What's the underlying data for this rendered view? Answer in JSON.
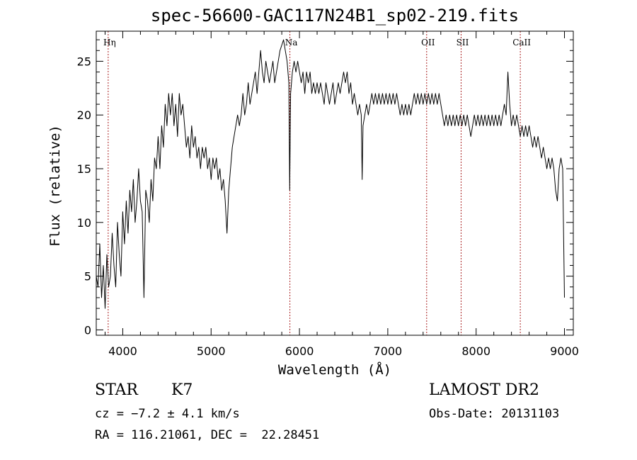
{
  "chart_data": {
    "type": "line",
    "title": "spec-56600-GAC117N24B1_sp02-219.fits",
    "xlabel": "Wavelength (Å)",
    "ylabel": "Flux (relative)",
    "xlim": [
      3700,
      9100
    ],
    "ylim": [
      -0.5,
      27.8
    ],
    "x_ticks": [
      4000,
      5000,
      6000,
      7000,
      8000,
      9000
    ],
    "x_tick_labels": [
      "4000",
      "5000",
      "6000",
      "7000",
      "8000",
      "9000"
    ],
    "y_ticks": [
      0,
      5,
      10,
      15,
      20,
      25
    ],
    "y_tick_labels": [
      "0",
      "5",
      "10",
      "15",
      "20",
      "25"
    ],
    "grid": false,
    "line_color": "#000000",
    "marker_color": "#aa2222",
    "line_markers": [
      {
        "label": "Hη",
        "wavelength": 3835
      },
      {
        "label": "Na",
        "wavelength": 5892
      },
      {
        "label": "OII",
        "wavelength": 7440
      },
      {
        "label": "SII",
        "wavelength": 7830
      },
      {
        "label": "CaII",
        "wavelength": 8500
      }
    ],
    "series": [
      {
        "values": [
          [
            3700,
            5
          ],
          [
            3720,
            4
          ],
          [
            3740,
            8
          ],
          [
            3760,
            3
          ],
          [
            3780,
            6
          ],
          [
            3800,
            2
          ],
          [
            3820,
            7
          ],
          [
            3840,
            4
          ],
          [
            3860,
            5
          ],
          [
            3880,
            9
          ],
          [
            3900,
            6
          ],
          [
            3920,
            4
          ],
          [
            3940,
            10
          ],
          [
            3960,
            7
          ],
          [
            3980,
            5
          ],
          [
            4000,
            11
          ],
          [
            4020,
            8
          ],
          [
            4040,
            12
          ],
          [
            4060,
            9
          ],
          [
            4080,
            13
          ],
          [
            4100,
            11
          ],
          [
            4120,
            14
          ],
          [
            4140,
            10
          ],
          [
            4160,
            12
          ],
          [
            4180,
            15
          ],
          [
            4200,
            12
          ],
          [
            4220,
            11
          ],
          [
            4240,
            3
          ],
          [
            4260,
            13
          ],
          [
            4280,
            12
          ],
          [
            4300,
            10
          ],
          [
            4320,
            14
          ],
          [
            4340,
            12
          ],
          [
            4360,
            16
          ],
          [
            4380,
            15
          ],
          [
            4400,
            18
          ],
          [
            4420,
            15
          ],
          [
            4440,
            19
          ],
          [
            4460,
            17
          ],
          [
            4480,
            21
          ],
          [
            4500,
            19
          ],
          [
            4520,
            22
          ],
          [
            4540,
            20
          ],
          [
            4560,
            22
          ],
          [
            4580,
            19
          ],
          [
            4600,
            21
          ],
          [
            4620,
            18
          ],
          [
            4640,
            22
          ],
          [
            4660,
            20
          ],
          [
            4680,
            21
          ],
          [
            4700,
            19
          ],
          [
            4720,
            17
          ],
          [
            4740,
            18
          ],
          [
            4760,
            16
          ],
          [
            4780,
            19
          ],
          [
            4800,
            17
          ],
          [
            4820,
            18
          ],
          [
            4840,
            16
          ],
          [
            4860,
            17
          ],
          [
            4880,
            15
          ],
          [
            4900,
            17
          ],
          [
            4920,
            16
          ],
          [
            4940,
            17
          ],
          [
            4960,
            15
          ],
          [
            4980,
            16
          ],
          [
            5000,
            14
          ],
          [
            5020,
            16
          ],
          [
            5040,
            15
          ],
          [
            5060,
            16
          ],
          [
            5080,
            14
          ],
          [
            5100,
            15
          ],
          [
            5120,
            13
          ],
          [
            5140,
            14
          ],
          [
            5160,
            12
          ],
          [
            5180,
            9
          ],
          [
            5200,
            13
          ],
          [
            5220,
            15
          ],
          [
            5240,
            17
          ],
          [
            5260,
            18
          ],
          [
            5280,
            19
          ],
          [
            5300,
            20
          ],
          [
            5320,
            19
          ],
          [
            5340,
            20
          ],
          [
            5360,
            22
          ],
          [
            5380,
            20
          ],
          [
            5400,
            21
          ],
          [
            5420,
            23
          ],
          [
            5440,
            21
          ],
          [
            5460,
            22
          ],
          [
            5480,
            23
          ],
          [
            5500,
            24
          ],
          [
            5520,
            22
          ],
          [
            5540,
            24
          ],
          [
            5560,
            26
          ],
          [
            5580,
            24
          ],
          [
            5600,
            23
          ],
          [
            5620,
            25
          ],
          [
            5640,
            24
          ],
          [
            5660,
            23
          ],
          [
            5680,
            24
          ],
          [
            5700,
            25
          ],
          [
            5720,
            23
          ],
          [
            5740,
            24
          ],
          [
            5760,
            25
          ],
          [
            5780,
            26
          ],
          [
            5800,
            26.5
          ],
          [
            5820,
            27
          ],
          [
            5840,
            26
          ],
          [
            5860,
            25
          ],
          [
            5880,
            23
          ],
          [
            5890,
            13
          ],
          [
            5900,
            22
          ],
          [
            5920,
            24
          ],
          [
            5940,
            25
          ],
          [
            5960,
            24
          ],
          [
            5980,
            25
          ],
          [
            6000,
            24
          ],
          [
            6020,
            23
          ],
          [
            6040,
            24
          ],
          [
            6060,
            22
          ],
          [
            6080,
            24
          ],
          [
            6100,
            23
          ],
          [
            6120,
            24
          ],
          [
            6140,
            22
          ],
          [
            6160,
            23
          ],
          [
            6180,
            22
          ],
          [
            6200,
            23
          ],
          [
            6220,
            22
          ],
          [
            6240,
            23
          ],
          [
            6260,
            22
          ],
          [
            6280,
            21
          ],
          [
            6300,
            23
          ],
          [
            6320,
            22
          ],
          [
            6340,
            21
          ],
          [
            6360,
            22
          ],
          [
            6380,
            23
          ],
          [
            6400,
            21
          ],
          [
            6420,
            22
          ],
          [
            6440,
            23
          ],
          [
            6460,
            22
          ],
          [
            6480,
            23
          ],
          [
            6500,
            24
          ],
          [
            6520,
            23
          ],
          [
            6540,
            24
          ],
          [
            6560,
            22
          ],
          [
            6580,
            23
          ],
          [
            6600,
            21
          ],
          [
            6620,
            22
          ],
          [
            6640,
            21
          ],
          [
            6660,
            20
          ],
          [
            6680,
            21
          ],
          [
            6700,
            20
          ],
          [
            6710,
            14
          ],
          [
            6720,
            19
          ],
          [
            6740,
            20
          ],
          [
            6760,
            21
          ],
          [
            6780,
            20
          ],
          [
            6800,
            21
          ],
          [
            6820,
            22
          ],
          [
            6840,
            21
          ],
          [
            6860,
            22
          ],
          [
            6880,
            21
          ],
          [
            6900,
            22
          ],
          [
            6920,
            21
          ],
          [
            6940,
            22
          ],
          [
            6960,
            21
          ],
          [
            6980,
            22
          ],
          [
            7000,
            21
          ],
          [
            7020,
            22
          ],
          [
            7040,
            21
          ],
          [
            7060,
            22
          ],
          [
            7080,
            21
          ],
          [
            7100,
            22
          ],
          [
            7120,
            21
          ],
          [
            7140,
            20
          ],
          [
            7160,
            21
          ],
          [
            7180,
            20
          ],
          [
            7200,
            21
          ],
          [
            7220,
            20
          ],
          [
            7240,
            21
          ],
          [
            7260,
            20
          ],
          [
            7280,
            21
          ],
          [
            7300,
            22
          ],
          [
            7320,
            21
          ],
          [
            7340,
            22
          ],
          [
            7360,
            21
          ],
          [
            7380,
            22
          ],
          [
            7400,
            21
          ],
          [
            7420,
            22
          ],
          [
            7440,
            21
          ],
          [
            7460,
            22
          ],
          [
            7480,
            21
          ],
          [
            7500,
            22
          ],
          [
            7520,
            21
          ],
          [
            7540,
            22
          ],
          [
            7560,
            21
          ],
          [
            7580,
            22
          ],
          [
            7600,
            21
          ],
          [
            7620,
            20
          ],
          [
            7640,
            19
          ],
          [
            7660,
            20
          ],
          [
            7680,
            19
          ],
          [
            7700,
            20
          ],
          [
            7720,
            19
          ],
          [
            7740,
            20
          ],
          [
            7760,
            19
          ],
          [
            7780,
            20
          ],
          [
            7800,
            19
          ],
          [
            7820,
            20
          ],
          [
            7840,
            19
          ],
          [
            7860,
            20
          ],
          [
            7880,
            19
          ],
          [
            7900,
            20
          ],
          [
            7920,
            19
          ],
          [
            7940,
            18
          ],
          [
            7960,
            19
          ],
          [
            7980,
            20
          ],
          [
            8000,
            19
          ],
          [
            8020,
            20
          ],
          [
            8040,
            19
          ],
          [
            8060,
            20
          ],
          [
            8080,
            19
          ],
          [
            8100,
            20
          ],
          [
            8120,
            19
          ],
          [
            8140,
            20
          ],
          [
            8160,
            19
          ],
          [
            8180,
            20
          ],
          [
            8200,
            19
          ],
          [
            8220,
            20
          ],
          [
            8240,
            19
          ],
          [
            8260,
            20
          ],
          [
            8280,
            19
          ],
          [
            8300,
            20
          ],
          [
            8320,
            21
          ],
          [
            8340,
            20
          ],
          [
            8360,
            24
          ],
          [
            8380,
            21
          ],
          [
            8400,
            19
          ],
          [
            8420,
            20
          ],
          [
            8440,
            19
          ],
          [
            8460,
            20
          ],
          [
            8480,
            19
          ],
          [
            8500,
            18
          ],
          [
            8520,
            19
          ],
          [
            8540,
            18
          ],
          [
            8560,
            19
          ],
          [
            8580,
            18
          ],
          [
            8600,
            19
          ],
          [
            8620,
            18
          ],
          [
            8640,
            17
          ],
          [
            8660,
            18
          ],
          [
            8680,
            17
          ],
          [
            8700,
            18
          ],
          [
            8720,
            17
          ],
          [
            8740,
            16
          ],
          [
            8760,
            17
          ],
          [
            8780,
            16
          ],
          [
            8800,
            15
          ],
          [
            8820,
            16
          ],
          [
            8840,
            15
          ],
          [
            8860,
            16
          ],
          [
            8880,
            15
          ],
          [
            8900,
            13
          ],
          [
            8920,
            12
          ],
          [
            8940,
            15
          ],
          [
            8960,
            16
          ],
          [
            8980,
            15
          ],
          [
            9000,
            3
          ]
        ]
      }
    ]
  },
  "info": {
    "object_class": "STAR",
    "spectral_type": "K7",
    "cz": "cz = −7.2 ± 4.1 km/s",
    "coords": "RA = 116.21061, DEC =  22.28451",
    "survey": "LAMOST DR2",
    "obs_date": "Obs-Date: 20131103"
  }
}
